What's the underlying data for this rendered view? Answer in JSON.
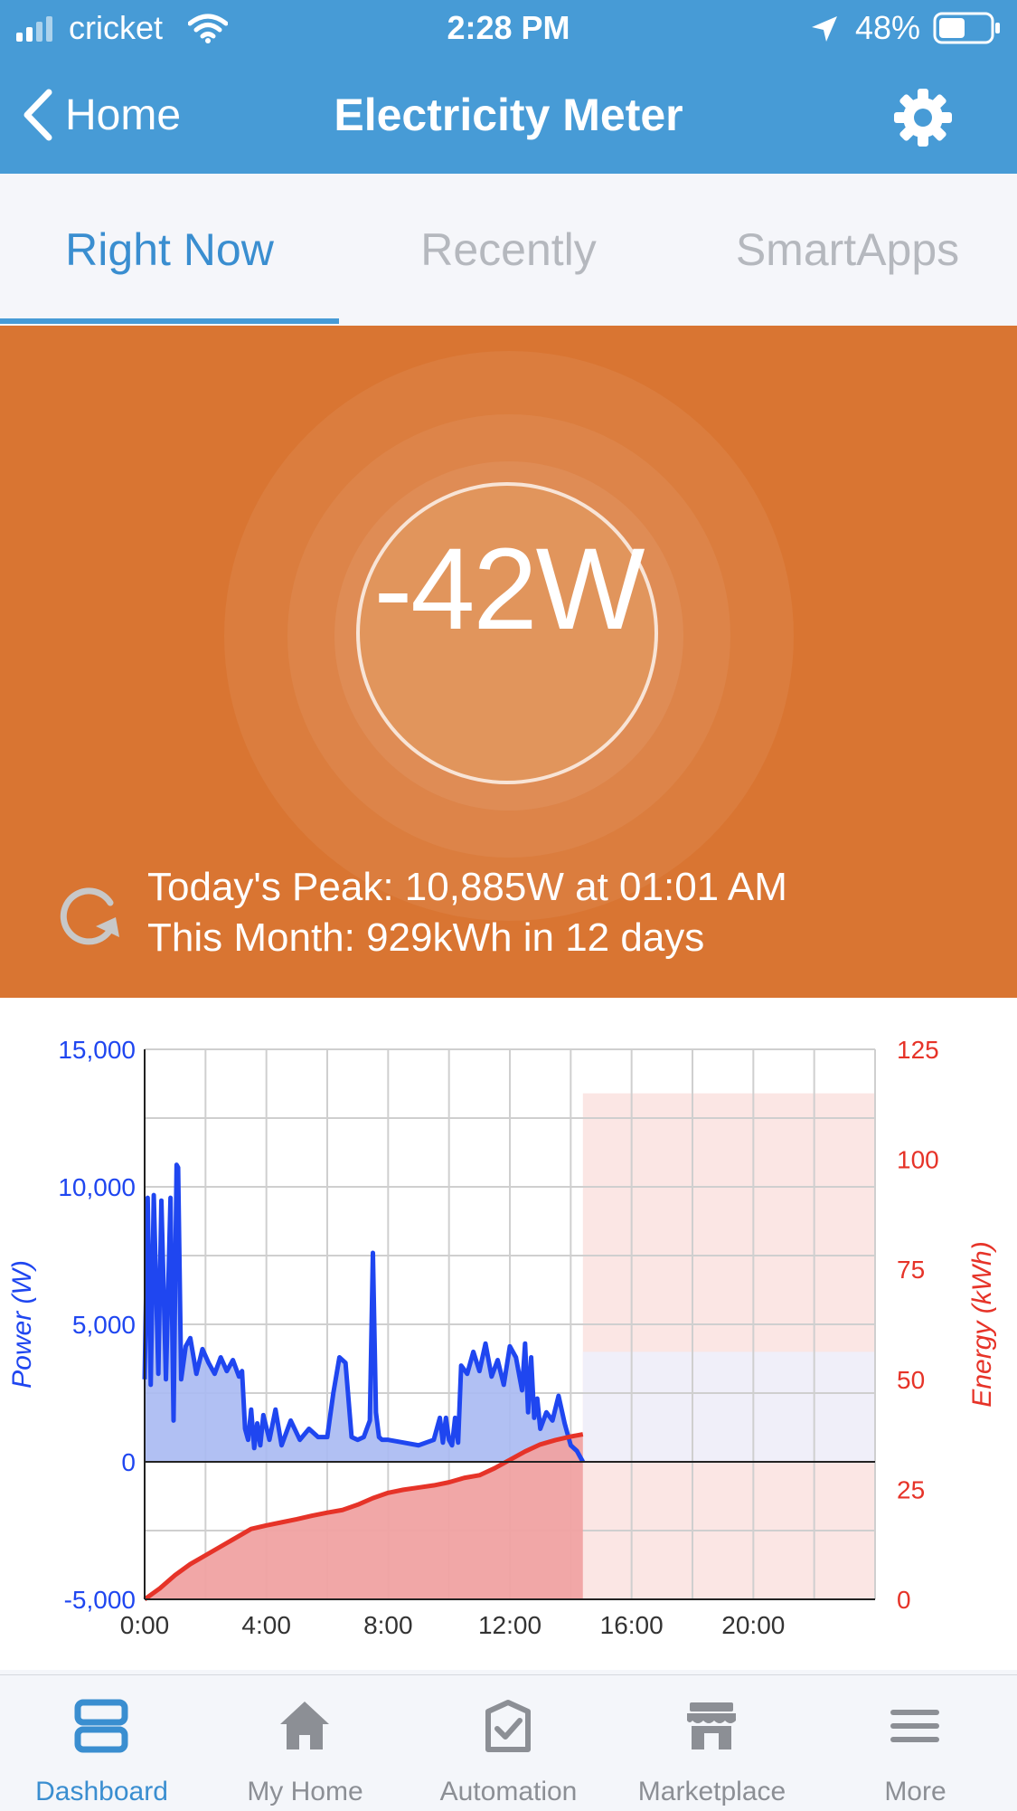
{
  "status_bar": {
    "carrier": "cricket",
    "time": "2:28 PM",
    "battery": "48%"
  },
  "nav": {
    "back_label": "Home",
    "title": "Electricity Meter"
  },
  "tabs": [
    {
      "label": "Right Now",
      "active": true
    },
    {
      "label": "Recently",
      "active": false
    },
    {
      "label": "SmartApps",
      "active": false
    }
  ],
  "hero": {
    "reading": "-42W",
    "peak": "Today's Peak: 10,885W at 01:01 AM",
    "month": "This Month: 929kWh in 12 days"
  },
  "chart_data": {
    "type": "area",
    "left_axis": {
      "label": "Power (W)",
      "range": [
        -5000,
        15000
      ],
      "ticks": [
        "15,000",
        "10,000",
        "5,000",
        "0",
        "-5,000"
      ]
    },
    "right_axis": {
      "label": "Energy (kWh)",
      "range": [
        0,
        125
      ],
      "ticks": [
        "125",
        "100",
        "75",
        "50",
        "25",
        "0"
      ]
    },
    "x_ticks": [
      "0:00",
      "4:00",
      "8:00",
      "12:00",
      "16:00",
      "20:00"
    ],
    "x_range_hours": [
      0,
      24
    ],
    "grid": true,
    "series": [
      {
        "axis": "left",
        "color": "#1f46f0",
        "x": [
          0,
          0.1,
          0.2,
          0.3,
          0.45,
          0.55,
          0.7,
          0.85,
          0.95,
          1.05,
          1.1,
          1.2,
          1.35,
          1.5,
          1.7,
          1.9,
          2.1,
          2.3,
          2.5,
          2.7,
          2.9,
          3.1,
          3.2,
          3.3,
          3.4,
          3.5,
          3.6,
          3.7,
          3.8,
          3.9,
          4.1,
          4.3,
          4.5,
          4.8,
          5.1,
          5.4,
          5.7,
          6.0,
          6.2,
          6.4,
          6.6,
          6.8,
          7.0,
          7.2,
          7.4,
          7.5,
          7.6,
          7.7,
          7.8,
          8.0,
          8.5,
          9.0,
          9.5,
          9.7,
          9.8,
          9.9,
          10.0,
          10.1,
          10.2,
          10.3,
          10.4,
          10.6,
          10.8,
          11.0,
          11.2,
          11.4,
          11.6,
          11.8,
          12.0,
          12.2,
          12.4,
          12.5,
          12.6,
          12.7,
          12.8,
          12.9,
          13.0,
          13.2,
          13.4,
          13.6,
          13.8,
          14.0,
          14.2,
          14.4
        ],
        "y": [
          3000,
          9600,
          2800,
          9700,
          3200,
          9500,
          3000,
          9600,
          1500,
          10800,
          10700,
          3000,
          4200,
          4500,
          3200,
          4100,
          3600,
          3200,
          3800,
          3300,
          3700,
          3100,
          3300,
          1200,
          800,
          1900,
          500,
          1400,
          600,
          1700,
          800,
          1900,
          600,
          1500,
          800,
          1200,
          900,
          900,
          2500,
          3800,
          3600,
          900,
          800,
          900,
          1500,
          7600,
          1800,
          900,
          800,
          800,
          700,
          600,
          800,
          1600,
          700,
          1600,
          800,
          600,
          1600,
          700,
          3500,
          3200,
          4000,
          3300,
          4300,
          3100,
          3700,
          2800,
          4200,
          3800,
          2600,
          4300,
          1800,
          3800,
          1600,
          2300,
          1200,
          1800,
          1500,
          2400,
          1400,
          600,
          400,
          0
        ]
      },
      {
        "axis": "right",
        "color": "#e63328",
        "x": [
          0,
          0.5,
          1.0,
          1.5,
          2.0,
          2.5,
          3.0,
          3.5,
          4.0,
          4.5,
          5.0,
          5.5,
          6.0,
          6.5,
          7.0,
          7.5,
          8.0,
          8.5,
          9.0,
          9.5,
          10.0,
          10.5,
          11.0,
          11.5,
          12.0,
          12.5,
          13.0,
          13.5,
          14.0,
          14.4
        ],
        "y": [
          0,
          2.5,
          5.5,
          8,
          10,
          12,
          14,
          16,
          16.8,
          17.5,
          18.2,
          19,
          19.7,
          20.3,
          21.5,
          23,
          24.2,
          24.9,
          25.4,
          25.9,
          26.6,
          27.6,
          28.2,
          29.8,
          31.7,
          33.6,
          35.2,
          36.2,
          37,
          37.5
        ]
      }
    ]
  },
  "bottom_nav": [
    {
      "label": "Dashboard",
      "icon": "dashboard-icon",
      "active": true
    },
    {
      "label": "My Home",
      "icon": "house-icon",
      "active": false
    },
    {
      "label": "Automation",
      "icon": "automation-icon",
      "active": false
    },
    {
      "label": "Marketplace",
      "icon": "store-icon",
      "active": false
    },
    {
      "label": "More",
      "icon": "menu-icon",
      "active": false
    }
  ],
  "colors": {
    "header": "#479bd6",
    "hero": "#d97532",
    "power": "#1f46f0",
    "energy": "#e63328"
  }
}
